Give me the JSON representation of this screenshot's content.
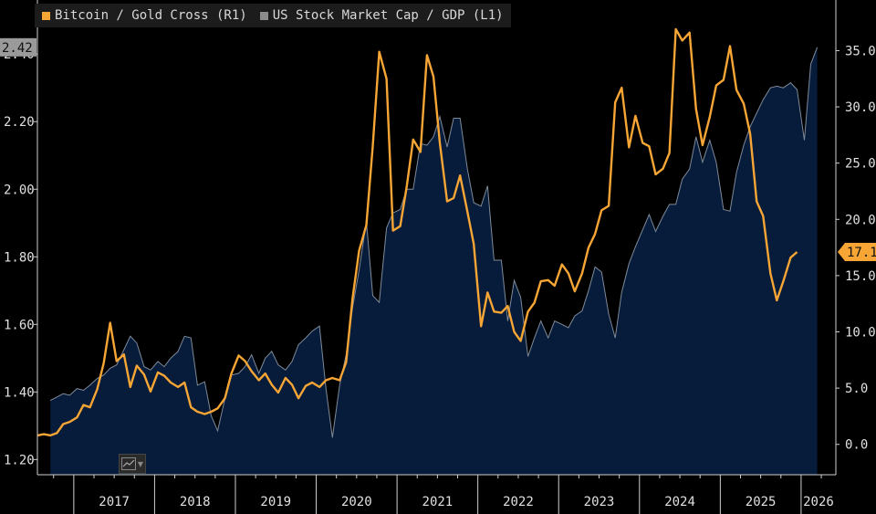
{
  "legend": [
    {
      "label": "Bitcoin / Gold Cross  (R1)",
      "color": "#f7a635"
    },
    {
      "label": "US Stock Market Cap / GDP  (L1)",
      "color": "#8c8c8c"
    }
  ],
  "chart_data": {
    "type": "line",
    "x_axis": {
      "labels": [
        "2017",
        "2018",
        "2019",
        "2020",
        "2021",
        "2022",
        "2023",
        "2024",
        "2025",
        "2026"
      ],
      "range": [
        2016.55,
        2026.43
      ]
    },
    "left_axis": {
      "ticks": [
        "1.20",
        "1.40",
        "1.60",
        "1.80",
        "2.00",
        "2.20",
        "2.40"
      ],
      "range": [
        1.155,
        2.56
      ],
      "last_value_label": "2.42"
    },
    "right_axis": {
      "ticks": [
        "0.0",
        "5.0",
        "10.0",
        "15.0",
        "20.0",
        "25.0",
        "30.0",
        "35.0"
      ],
      "range": [
        -2.7,
        39.5
      ],
      "last_value_label": "17.1"
    },
    "series": [
      {
        "name": "US Stock Market Cap / GDP",
        "axis": "left",
        "style": "area",
        "color": "#7f8a99",
        "fill": "#061c3a",
        "points": [
          [
            2016.71,
            1.375
          ],
          [
            2016.79,
            1.385
          ],
          [
            2016.87,
            1.395
          ],
          [
            2016.95,
            1.39
          ],
          [
            2017.04,
            1.41
          ],
          [
            2017.12,
            1.405
          ],
          [
            2017.2,
            1.42
          ],
          [
            2017.29,
            1.44
          ],
          [
            2017.37,
            1.45
          ],
          [
            2017.45,
            1.47
          ],
          [
            2017.53,
            1.48
          ],
          [
            2017.62,
            1.525
          ],
          [
            2017.7,
            1.565
          ],
          [
            2017.78,
            1.545
          ],
          [
            2017.87,
            1.475
          ],
          [
            2017.95,
            1.465
          ],
          [
            2018.04,
            1.49
          ],
          [
            2018.12,
            1.475
          ],
          [
            2018.2,
            1.5
          ],
          [
            2018.29,
            1.52
          ],
          [
            2018.37,
            1.565
          ],
          [
            2018.45,
            1.56
          ],
          [
            2018.53,
            1.42
          ],
          [
            2018.62,
            1.43
          ],
          [
            2018.7,
            1.33
          ],
          [
            2018.78,
            1.285
          ],
          [
            2018.87,
            1.38
          ],
          [
            2018.95,
            1.45
          ],
          [
            2019.04,
            1.455
          ],
          [
            2019.12,
            1.475
          ],
          [
            2019.2,
            1.51
          ],
          [
            2019.29,
            1.455
          ],
          [
            2019.37,
            1.5
          ],
          [
            2019.45,
            1.52
          ],
          [
            2019.53,
            1.48
          ],
          [
            2019.62,
            1.465
          ],
          [
            2019.7,
            1.49
          ],
          [
            2019.78,
            1.54
          ],
          [
            2019.87,
            1.56
          ],
          [
            2019.95,
            1.58
          ],
          [
            2020.04,
            1.595
          ],
          [
            2020.12,
            1.41
          ],
          [
            2020.2,
            1.265
          ],
          [
            2020.29,
            1.42
          ],
          [
            2020.37,
            1.51
          ],
          [
            2020.45,
            1.65
          ],
          [
            2020.53,
            1.76
          ],
          [
            2020.62,
            1.905
          ],
          [
            2020.7,
            1.685
          ],
          [
            2020.78,
            1.665
          ],
          [
            2020.87,
            1.885
          ],
          [
            2020.95,
            1.93
          ],
          [
            2021.04,
            1.94
          ],
          [
            2021.12,
            2.0
          ],
          [
            2021.2,
            2.0
          ],
          [
            2021.29,
            2.135
          ],
          [
            2021.37,
            2.13
          ],
          [
            2021.45,
            2.155
          ],
          [
            2021.53,
            2.215
          ],
          [
            2021.62,
            2.125
          ],
          [
            2021.7,
            2.21
          ],
          [
            2021.78,
            2.21
          ],
          [
            2021.87,
            2.06
          ],
          [
            2021.95,
            1.96
          ],
          [
            2022.04,
            1.95
          ],
          [
            2022.12,
            2.01
          ],
          [
            2022.2,
            1.79
          ],
          [
            2022.29,
            1.79
          ],
          [
            2022.37,
            1.61
          ],
          [
            2022.45,
            1.73
          ],
          [
            2022.53,
            1.68
          ],
          [
            2022.62,
            1.505
          ],
          [
            2022.7,
            1.56
          ],
          [
            2022.78,
            1.61
          ],
          [
            2022.87,
            1.56
          ],
          [
            2022.95,
            1.61
          ],
          [
            2023.04,
            1.6
          ],
          [
            2023.12,
            1.59
          ],
          [
            2023.2,
            1.625
          ],
          [
            2023.29,
            1.64
          ],
          [
            2023.37,
            1.7
          ],
          [
            2023.45,
            1.77
          ],
          [
            2023.53,
            1.755
          ],
          [
            2023.62,
            1.63
          ],
          [
            2023.7,
            1.56
          ],
          [
            2023.78,
            1.695
          ],
          [
            2023.87,
            1.78
          ],
          [
            2023.95,
            1.83
          ],
          [
            2024.04,
            1.88
          ],
          [
            2024.12,
            1.925
          ],
          [
            2024.2,
            1.875
          ],
          [
            2024.29,
            1.92
          ],
          [
            2024.37,
            1.955
          ],
          [
            2024.45,
            1.955
          ],
          [
            2024.53,
            2.03
          ],
          [
            2024.62,
            2.06
          ],
          [
            2024.7,
            2.155
          ],
          [
            2024.78,
            2.08
          ],
          [
            2024.87,
            2.145
          ],
          [
            2024.95,
            2.08
          ],
          [
            2025.04,
            1.94
          ],
          [
            2025.12,
            1.935
          ],
          [
            2025.2,
            2.05
          ],
          [
            2025.29,
            2.13
          ],
          [
            2025.37,
            2.185
          ],
          [
            2025.45,
            2.225
          ],
          [
            2025.53,
            2.265
          ],
          [
            2025.62,
            2.3
          ],
          [
            2025.7,
            2.305
          ],
          [
            2025.78,
            2.3
          ],
          [
            2025.87,
            2.315
          ],
          [
            2025.95,
            2.295
          ],
          [
            2026.04,
            2.145
          ],
          [
            2026.12,
            2.37
          ],
          [
            2026.2,
            2.42
          ]
        ]
      },
      {
        "name": "Bitcoin / Gold Cross",
        "axis": "right",
        "style": "line",
        "color": "#f7a635",
        "points": [
          [
            2016.55,
            0.8
          ],
          [
            2016.63,
            0.9
          ],
          [
            2016.71,
            0.8
          ],
          [
            2016.79,
            1.0
          ],
          [
            2016.87,
            1.8
          ],
          [
            2016.95,
            2.0
          ],
          [
            2017.04,
            2.4
          ],
          [
            2017.12,
            3.5
          ],
          [
            2017.2,
            3.3
          ],
          [
            2017.29,
            4.9
          ],
          [
            2017.37,
            7.2
          ],
          [
            2017.45,
            10.8
          ],
          [
            2017.53,
            7.4
          ],
          [
            2017.62,
            8.0
          ],
          [
            2017.7,
            5.1
          ],
          [
            2017.78,
            7.0
          ],
          [
            2017.87,
            6.2
          ],
          [
            2017.95,
            4.7
          ],
          [
            2018.04,
            6.4
          ],
          [
            2018.12,
            6.1
          ],
          [
            2018.2,
            5.5
          ],
          [
            2018.29,
            5.1
          ],
          [
            2018.37,
            5.5
          ],
          [
            2018.45,
            3.3
          ],
          [
            2018.53,
            2.9
          ],
          [
            2018.62,
            2.7
          ],
          [
            2018.7,
            2.9
          ],
          [
            2018.78,
            3.2
          ],
          [
            2018.87,
            4.1
          ],
          [
            2018.95,
            6.3
          ],
          [
            2019.04,
            7.9
          ],
          [
            2019.12,
            7.4
          ],
          [
            2019.2,
            6.5
          ],
          [
            2019.29,
            5.7
          ],
          [
            2019.37,
            6.3
          ],
          [
            2019.45,
            5.3
          ],
          [
            2019.53,
            4.6
          ],
          [
            2019.62,
            5.9
          ],
          [
            2019.7,
            5.3
          ],
          [
            2019.78,
            4.1
          ],
          [
            2019.87,
            5.2
          ],
          [
            2019.95,
            5.5
          ],
          [
            2020.04,
            5.1
          ],
          [
            2020.12,
            5.7
          ],
          [
            2020.2,
            5.9
          ],
          [
            2020.29,
            5.7
          ],
          [
            2020.37,
            7.3
          ],
          [
            2020.45,
            13.0
          ],
          [
            2020.53,
            17.2
          ],
          [
            2020.62,
            19.5
          ],
          [
            2020.7,
            26.5
          ],
          [
            2020.78,
            34.9
          ],
          [
            2020.87,
            32.5
          ],
          [
            2020.95,
            19.0
          ],
          [
            2021.04,
            19.4
          ],
          [
            2021.12,
            22.9
          ],
          [
            2021.2,
            27.1
          ],
          [
            2021.29,
            26.0
          ],
          [
            2021.37,
            34.6
          ],
          [
            2021.45,
            32.7
          ],
          [
            2021.53,
            26.8
          ],
          [
            2021.62,
            21.6
          ],
          [
            2021.7,
            21.9
          ],
          [
            2021.78,
            23.9
          ],
          [
            2021.87,
            20.7
          ],
          [
            2021.95,
            17.8
          ],
          [
            2022.04,
            10.5
          ],
          [
            2022.12,
            13.5
          ],
          [
            2022.2,
            11.8
          ],
          [
            2022.29,
            11.7
          ],
          [
            2022.37,
            12.3
          ],
          [
            2022.45,
            10.0
          ],
          [
            2022.53,
            9.2
          ],
          [
            2022.62,
            11.8
          ],
          [
            2022.7,
            12.6
          ],
          [
            2022.78,
            14.5
          ],
          [
            2022.87,
            14.6
          ],
          [
            2022.95,
            14.1
          ],
          [
            2023.04,
            16.0
          ],
          [
            2023.12,
            15.2
          ],
          [
            2023.2,
            13.6
          ],
          [
            2023.29,
            15.2
          ],
          [
            2023.37,
            17.5
          ],
          [
            2023.45,
            18.7
          ],
          [
            2023.53,
            20.8
          ],
          [
            2023.62,
            21.2
          ],
          [
            2023.7,
            30.4
          ],
          [
            2023.78,
            31.7
          ],
          [
            2023.87,
            26.4
          ],
          [
            2023.95,
            29.2
          ],
          [
            2024.04,
            26.8
          ],
          [
            2024.12,
            26.5
          ],
          [
            2024.2,
            24.0
          ],
          [
            2024.29,
            24.5
          ],
          [
            2024.37,
            25.9
          ],
          [
            2024.45,
            36.9
          ],
          [
            2024.53,
            35.9
          ],
          [
            2024.62,
            36.6
          ],
          [
            2024.7,
            29.8
          ],
          [
            2024.78,
            26.6
          ],
          [
            2024.87,
            29.1
          ],
          [
            2024.95,
            31.9
          ],
          [
            2025.04,
            32.4
          ],
          [
            2025.12,
            35.4
          ],
          [
            2025.2,
            31.5
          ],
          [
            2025.29,
            30.3
          ],
          [
            2025.37,
            27.6
          ],
          [
            2025.45,
            21.6
          ],
          [
            2025.53,
            20.3
          ],
          [
            2025.62,
            15.2
          ],
          [
            2025.7,
            12.8
          ],
          [
            2025.78,
            14.5
          ],
          [
            2025.87,
            16.6
          ],
          [
            2025.95,
            17.1
          ]
        ]
      }
    ]
  }
}
